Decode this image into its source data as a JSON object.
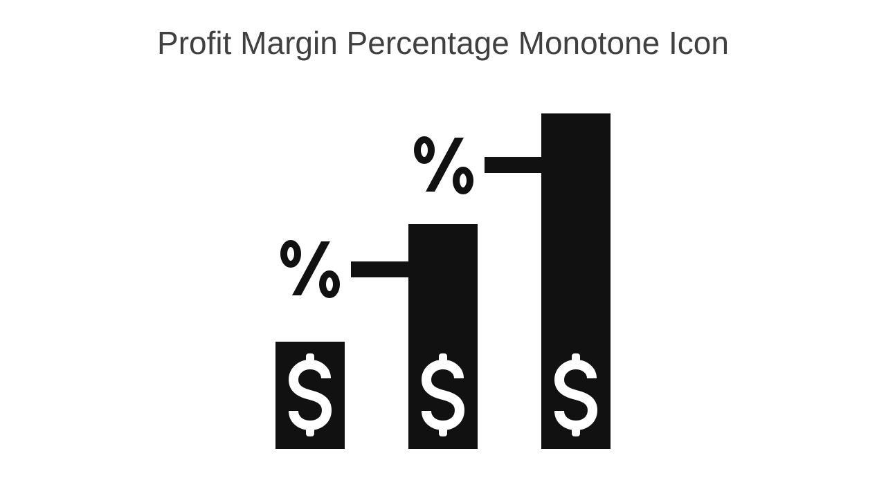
{
  "slide": {
    "title": "Profit Margin Percentage Monotone Icon"
  },
  "icon": {
    "name": "profit-margin-percentage-icon",
    "color": "#111111",
    "symbol_color": "#ffffff",
    "bars": [
      {
        "label": "small-bar",
        "level": 1,
        "symbol": "dollar-sign"
      },
      {
        "label": "medium-bar",
        "level": 2,
        "symbol": "dollar-sign"
      },
      {
        "label": "large-bar",
        "level": 3,
        "symbol": "dollar-sign"
      }
    ],
    "markers": [
      {
        "symbol": "percent-sign",
        "attached_to": "medium-bar"
      },
      {
        "symbol": "percent-sign",
        "attached_to": "large-bar"
      }
    ]
  }
}
